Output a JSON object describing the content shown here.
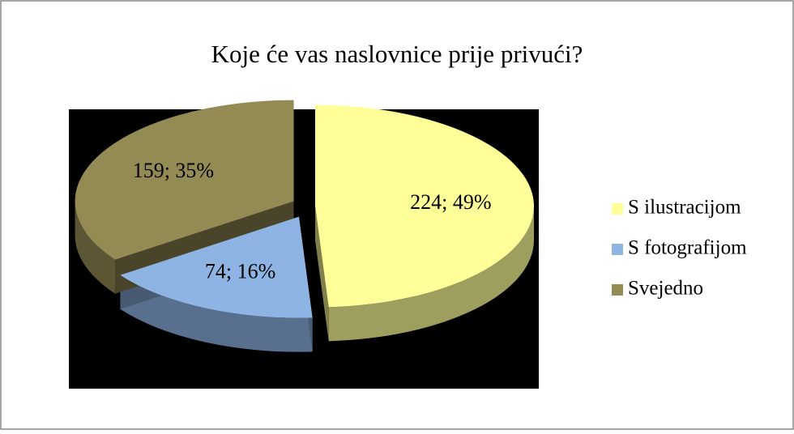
{
  "chart_data": {
    "type": "pie3d",
    "title": "Koje će vas naslovnice prije privući?",
    "categories": [
      "S ilustracijom",
      "S fotografijom",
      "Svejedno"
    ],
    "values": [
      224,
      74,
      159
    ],
    "value_labels": [
      "224; 49%",
      "74; 16%",
      "159; 35%"
    ],
    "colors": [
      "#ffff99",
      "#8eb4e3",
      "#948a54"
    ]
  }
}
